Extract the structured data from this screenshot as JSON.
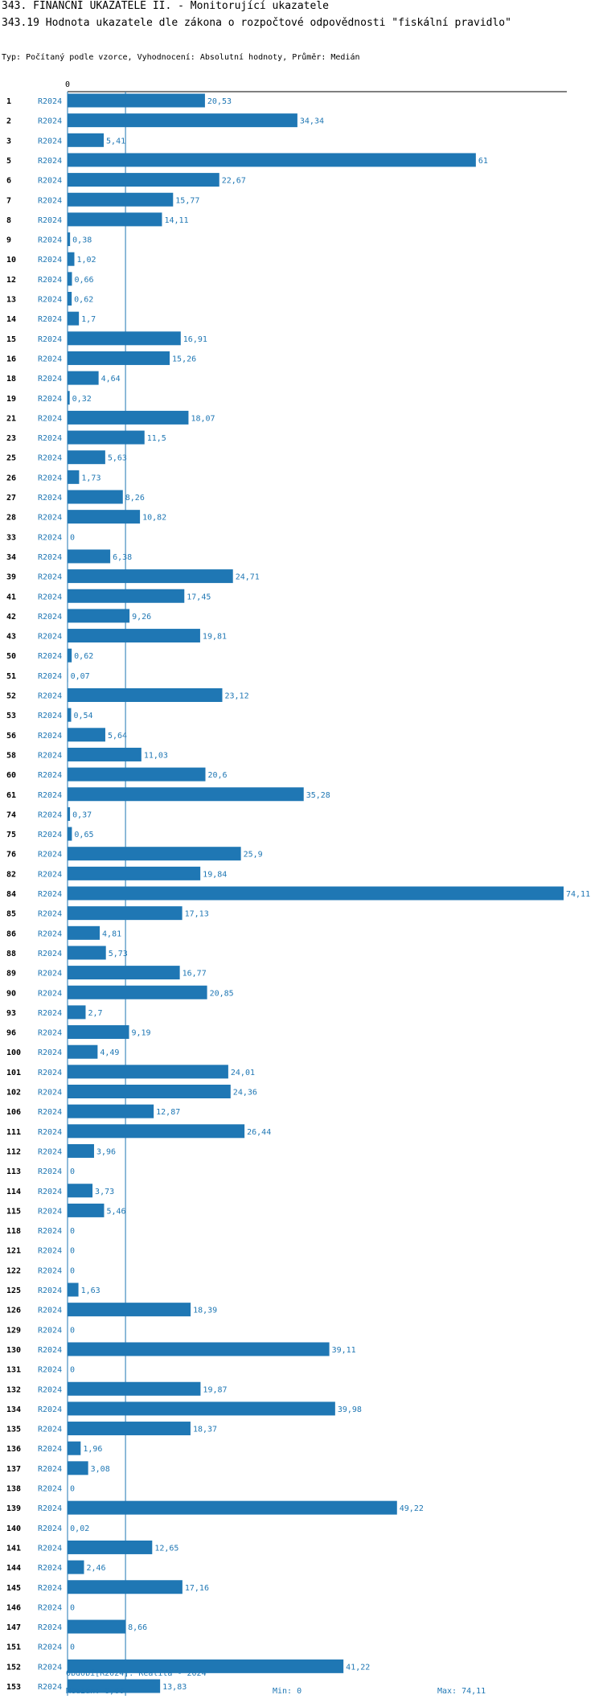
{
  "header": {
    "title": "343. FINANČNÍ UKAZATELE II. - Monitorující ukazatele",
    "subtitle": "343.19 Hodnota ukazatele dle zákona o rozpočtové odpovědnosti \"fiskální pravidlo\"",
    "type_line": "Typ: Počítaný podle vzorce, Vyhodnocení: Absolutní hodnoty, Průměr: Medián"
  },
  "chart_data": {
    "type": "bar",
    "orientation": "horizontal",
    "series_name": "R2024",
    "x_tick_label": "0",
    "xlim": [
      0,
      74.11
    ],
    "median": 8.66,
    "categories": [
      "1",
      "2",
      "3",
      "5",
      "6",
      "7",
      "8",
      "9",
      "10",
      "12",
      "13",
      "14",
      "15",
      "16",
      "18",
      "19",
      "21",
      "23",
      "25",
      "26",
      "27",
      "28",
      "33",
      "34",
      "39",
      "41",
      "42",
      "43",
      "50",
      "51",
      "52",
      "53",
      "56",
      "58",
      "60",
      "61",
      "74",
      "75",
      "76",
      "82",
      "84",
      "85",
      "86",
      "88",
      "89",
      "90",
      "93",
      "96",
      "100",
      "101",
      "102",
      "106",
      "111",
      "112",
      "113",
      "114",
      "115",
      "118",
      "121",
      "122",
      "125",
      "126",
      "129",
      "130",
      "131",
      "132",
      "134",
      "135",
      "136",
      "137",
      "138",
      "139",
      "140",
      "141",
      "144",
      "145",
      "146",
      "147",
      "151",
      "152",
      "153"
    ],
    "values": [
      20.53,
      34.34,
      5.41,
      61,
      22.67,
      15.77,
      14.11,
      0.38,
      1.02,
      0.66,
      0.62,
      1.7,
      16.91,
      15.26,
      4.64,
      0.32,
      18.07,
      11.5,
      5.63,
      1.73,
      8.26,
      10.82,
      0,
      6.38,
      24.71,
      17.45,
      9.26,
      19.81,
      0.62,
      0.07,
      23.12,
      0.54,
      5.64,
      11.03,
      20.6,
      35.28,
      0.37,
      0.65,
      25.9,
      19.84,
      74.11,
      17.13,
      4.81,
      5.73,
      16.77,
      20.85,
      2.7,
      9.19,
      4.49,
      24.01,
      24.36,
      12.87,
      26.44,
      3.96,
      0,
      3.73,
      5.46,
      0,
      0,
      0,
      1.63,
      18.39,
      0,
      39.11,
      0,
      19.87,
      39.98,
      18.37,
      1.96,
      3.08,
      0,
      49.22,
      0.02,
      12.65,
      2.46,
      17.16,
      0,
      8.66,
      0,
      41.22,
      13.83
    ],
    "value_labels": [
      "20,53",
      "34,34",
      "5,41",
      "61",
      "22,67",
      "15,77",
      "14,11",
      "0,38",
      "1,02",
      "0,66",
      "0,62",
      "1,7",
      "16,91",
      "15,26",
      "4,64",
      "0,32",
      "18,07",
      "11,5",
      "5,63",
      "1,73",
      "8,26",
      "10,82",
      "0",
      "6,38",
      "24,71",
      "17,45",
      "9,26",
      "19,81",
      "0,62",
      "0,07",
      "23,12",
      "0,54",
      "5,64",
      "11,03",
      "20,6",
      "35,28",
      "0,37",
      "0,65",
      "25,9",
      "19,84",
      "74,11",
      "17,13",
      "4,81",
      "5,73",
      "16,77",
      "20,85",
      "2,7",
      "9,19",
      "4,49",
      "24,01",
      "24,36",
      "12,87",
      "26,44",
      "3,96",
      "0",
      "3,73",
      "5,46",
      "0",
      "0",
      "0",
      "1,63",
      "18,39",
      "0",
      "39,11",
      "0",
      "19,87",
      "39,98",
      "18,37",
      "1,96",
      "3,08",
      "0",
      "49,22",
      "0,02",
      "12,65",
      "2,46",
      "17,16",
      "0",
      "8,66",
      "0",
      "41,22",
      "13,83"
    ]
  },
  "footer": {
    "period": "Období[R2024]: Realita - 2024",
    "median": "Medián: 8,66",
    "min": "Min: 0",
    "max": "Max: 74,11"
  },
  "colors": {
    "bar": "#1f77b4",
    "text_accent": "#1f77b4"
  }
}
